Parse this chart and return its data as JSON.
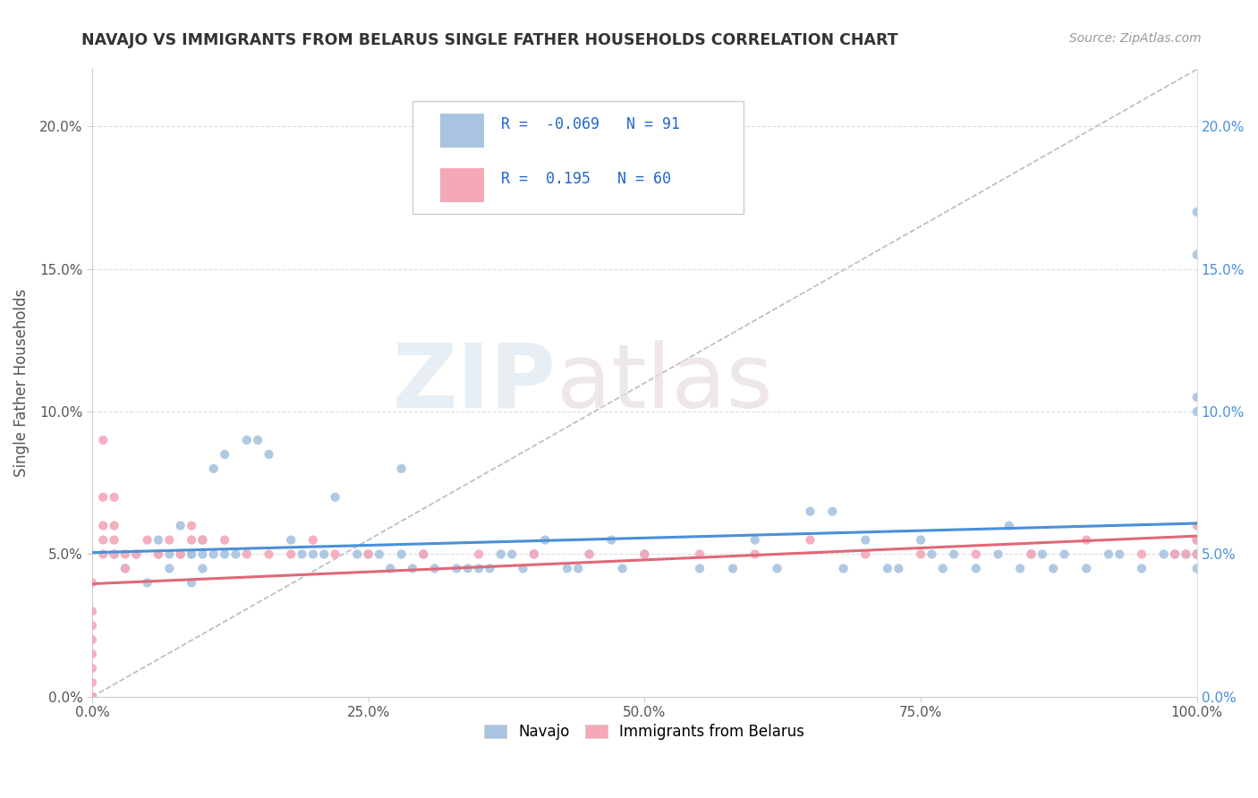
{
  "title": "NAVAJO VS IMMIGRANTS FROM BELARUS SINGLE FATHER HOUSEHOLDS CORRELATION CHART",
  "source": "Source: ZipAtlas.com",
  "ylabel": "Single Father Households",
  "xlim": [
    0,
    100
  ],
  "ylim": [
    0,
    22
  ],
  "yticks": [
    0,
    5,
    10,
    15,
    20
  ],
  "ytick_labels": [
    "0.0%",
    "5.0%",
    "10.0%",
    "15.0%",
    "20.0%"
  ],
  "xticks": [
    0,
    25,
    50,
    75,
    100
  ],
  "xtick_labels": [
    "0.0%",
    "25.0%",
    "50.0%",
    "75.0%",
    "100.0%"
  ],
  "navajo_R": -0.069,
  "navajo_N": 91,
  "belarus_R": 0.195,
  "belarus_N": 60,
  "navajo_color": "#a8c4e0",
  "belarus_color": "#f4a8b8",
  "navajo_line_color": "#4a90d9",
  "belarus_line_color": "#e06878",
  "watermark_zip": "ZIP",
  "watermark_atlas": "atlas",
  "navajo_x": [
    2,
    3,
    4,
    5,
    6,
    6,
    7,
    7,
    8,
    8,
    9,
    9,
    9,
    10,
    10,
    10,
    11,
    11,
    12,
    12,
    13,
    14,
    15,
    16,
    18,
    19,
    20,
    21,
    22,
    24,
    25,
    26,
    27,
    28,
    28,
    29,
    30,
    31,
    33,
    34,
    35,
    36,
    37,
    38,
    39,
    40,
    41,
    43,
    44,
    45,
    47,
    48,
    50,
    55,
    58,
    60,
    62,
    65,
    67,
    68,
    70,
    72,
    73,
    75,
    76,
    77,
    78,
    80,
    82,
    83,
    84,
    85,
    86,
    87,
    88,
    90,
    92,
    93,
    95,
    97,
    98,
    99,
    100,
    100,
    100,
    100,
    100,
    100,
    100,
    100,
    100
  ],
  "navajo_y": [
    5.0,
    4.5,
    5.0,
    4.0,
    5.5,
    5.0,
    4.5,
    5.0,
    5.0,
    6.0,
    5.0,
    4.0,
    5.0,
    5.5,
    5.0,
    4.5,
    8.0,
    5.0,
    8.5,
    5.0,
    5.0,
    9.0,
    9.0,
    8.5,
    5.5,
    5.0,
    5.0,
    5.0,
    7.0,
    5.0,
    5.0,
    5.0,
    4.5,
    5.0,
    8.0,
    4.5,
    5.0,
    4.5,
    4.5,
    4.5,
    4.5,
    4.5,
    5.0,
    5.0,
    4.5,
    5.0,
    5.5,
    4.5,
    4.5,
    5.0,
    5.5,
    4.5,
    5.0,
    4.5,
    4.5,
    5.5,
    4.5,
    6.5,
    6.5,
    4.5,
    5.5,
    4.5,
    4.5,
    5.5,
    5.0,
    4.5,
    5.0,
    4.5,
    5.0,
    6.0,
    4.5,
    5.0,
    5.0,
    4.5,
    5.0,
    4.5,
    5.0,
    5.0,
    4.5,
    5.0,
    5.0,
    5.0,
    5.0,
    4.5,
    5.0,
    5.0,
    15.5,
    17.0,
    10.0,
    5.5,
    10.5
  ],
  "belarus_x": [
    0,
    0,
    0,
    0,
    0,
    0,
    0,
    0,
    0,
    0,
    0,
    0,
    0,
    1,
    1,
    1,
    1,
    1,
    2,
    2,
    2,
    2,
    3,
    3,
    4,
    5,
    6,
    7,
    8,
    9,
    9,
    10,
    12,
    14,
    16,
    18,
    20,
    22,
    25,
    30,
    35,
    40,
    45,
    50,
    55,
    60,
    65,
    70,
    75,
    80,
    85,
    90,
    95,
    98,
    99,
    100,
    100,
    100,
    100,
    100
  ],
  "belarus_y": [
    0.0,
    0.0,
    0.0,
    0.0,
    0.0,
    0.0,
    0.5,
    1.0,
    1.5,
    2.0,
    2.5,
    3.0,
    4.0,
    5.0,
    5.5,
    6.0,
    7.0,
    9.0,
    5.0,
    5.5,
    6.0,
    7.0,
    4.5,
    5.0,
    5.0,
    5.5,
    5.0,
    5.5,
    5.0,
    5.5,
    6.0,
    5.5,
    5.5,
    5.0,
    5.0,
    5.0,
    5.5,
    5.0,
    5.0,
    5.0,
    5.0,
    5.0,
    5.0,
    5.0,
    5.0,
    5.0,
    5.5,
    5.0,
    5.0,
    5.0,
    5.0,
    5.5,
    5.0,
    5.0,
    5.0,
    5.0,
    5.5,
    6.0,
    5.5,
    5.5
  ]
}
